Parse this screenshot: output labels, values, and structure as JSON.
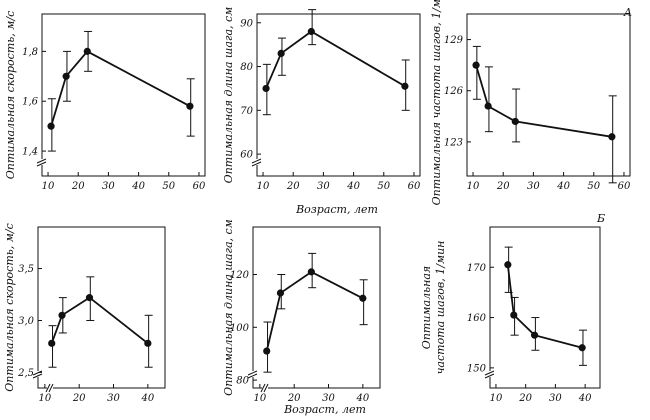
{
  "figure": {
    "label_A": "A",
    "label_B": "Б",
    "xlabel_top": "Возраст, лет",
    "xlabel_bottom": "Возраст, лет"
  },
  "chart_data": [
    {
      "id": "a1",
      "type": "line",
      "ylabel": "Оптимальная скорость, м/с",
      "xlim": [
        8,
        62
      ],
      "xticks": [
        "10",
        "20",
        "30",
        "40",
        "50",
        "60"
      ],
      "xtick_values": [
        10,
        20,
        30,
        40,
        50,
        60
      ],
      "ylim": [
        1.3,
        1.95
      ],
      "yticks": [
        "1,4",
        "1,6",
        "1,8"
      ],
      "ytick_values": [
        1.4,
        1.6,
        1.8
      ],
      "x": [
        11,
        16,
        23,
        57
      ],
      "y": [
        1.5,
        1.7,
        1.8,
        1.58
      ],
      "err_low": [
        1.4,
        1.6,
        1.72,
        1.46
      ],
      "err_high": [
        1.61,
        1.8,
        1.88,
        1.69
      ]
    },
    {
      "id": "a2",
      "type": "line",
      "ylabel": "Оптимальная длина шага, см",
      "xlim": [
        8,
        62
      ],
      "xticks": [
        "10",
        "20",
        "30",
        "40",
        "50",
        "60"
      ],
      "xtick_values": [
        10,
        20,
        30,
        40,
        50,
        60
      ],
      "ylim": [
        55,
        92
      ],
      "yticks": [
        "60",
        "70",
        "80",
        "90"
      ],
      "ytick_values": [
        60,
        70,
        80,
        90
      ],
      "x": [
        11,
        16,
        26,
        57
      ],
      "y": [
        75,
        83,
        88,
        75.5
      ],
      "err_low": [
        69,
        78,
        85,
        70
      ],
      "err_high": [
        80.5,
        86.5,
        93,
        81.5
      ]
    },
    {
      "id": "a3",
      "type": "line",
      "ylabel": "Оптимальная частота шагов, 1/мин",
      "xlim": [
        8,
        62
      ],
      "xticks": [
        "10",
        "20",
        "30",
        "40",
        "50",
        "60"
      ],
      "xtick_values": [
        10,
        20,
        30,
        40,
        50,
        60
      ],
      "ylim": [
        121,
        130.5
      ],
      "yticks": [
        "123",
        "126",
        "129"
      ],
      "ytick_values": [
        123,
        126,
        129
      ],
      "x": [
        11,
        15,
        24,
        56
      ],
      "y": [
        127.5,
        125.1,
        124.2,
        123.3
      ],
      "err_low": [
        125.5,
        123.6,
        123.0,
        120.6
      ],
      "err_high": [
        128.6,
        127.4,
        126.1,
        125.7
      ]
    },
    {
      "id": "b1",
      "type": "line",
      "ylabel": "Оптимальная скорость, м/с",
      "xlim": [
        8,
        45
      ],
      "xticks": [
        "10",
        "20",
        "30",
        "40"
      ],
      "xtick_values": [
        10,
        20,
        30,
        40
      ],
      "ylim": [
        2.35,
        3.9
      ],
      "yticks": [
        "2,5",
        "3,0",
        "3,5"
      ],
      "ytick_values": [
        2.5,
        3.0,
        3.5
      ],
      "x": [
        12,
        15,
        23,
        40
      ],
      "y": [
        2.78,
        3.05,
        3.22,
        2.78
      ],
      "err_low": [
        2.55,
        2.88,
        3.0,
        2.55
      ],
      "err_high": [
        2.95,
        3.22,
        3.42,
        3.05
      ]
    },
    {
      "id": "b2",
      "type": "line",
      "ylabel": "Оптимальная длина шага, см",
      "xlim": [
        8,
        45
      ],
      "xticks": [
        "10",
        "20",
        "30",
        "40"
      ],
      "xtick_values": [
        10,
        20,
        30,
        40
      ],
      "ylim": [
        77,
        138
      ],
      "yticks": [
        "80",
        "100",
        "120"
      ],
      "ytick_values": [
        80,
        100,
        120
      ],
      "x": [
        12,
        16,
        25,
        40
      ],
      "y": [
        91,
        113,
        121,
        111
      ],
      "err_low": [
        83,
        107,
        115,
        101
      ],
      "err_high": [
        102,
        120,
        128,
        118
      ]
    },
    {
      "id": "b3",
      "type": "line",
      "ylabel_line1": "Оптимальная",
      "ylabel_line2": "частота шагов, 1/мин",
      "xlim": [
        8,
        45
      ],
      "xticks": [
        "10",
        "20",
        "30",
        "40"
      ],
      "xtick_values": [
        10,
        20,
        30,
        40
      ],
      "ylim": [
        146,
        178
      ],
      "yticks": [
        "150",
        "160",
        "170"
      ],
      "ytick_values": [
        150,
        160,
        170
      ],
      "x": [
        14,
        16,
        23,
        39
      ],
      "y": [
        170.5,
        160.5,
        156.5,
        154
      ],
      "err_low": [
        165,
        156.5,
        153.5,
        150.5
      ],
      "err_high": [
        174,
        164,
        160,
        157.5
      ]
    }
  ]
}
